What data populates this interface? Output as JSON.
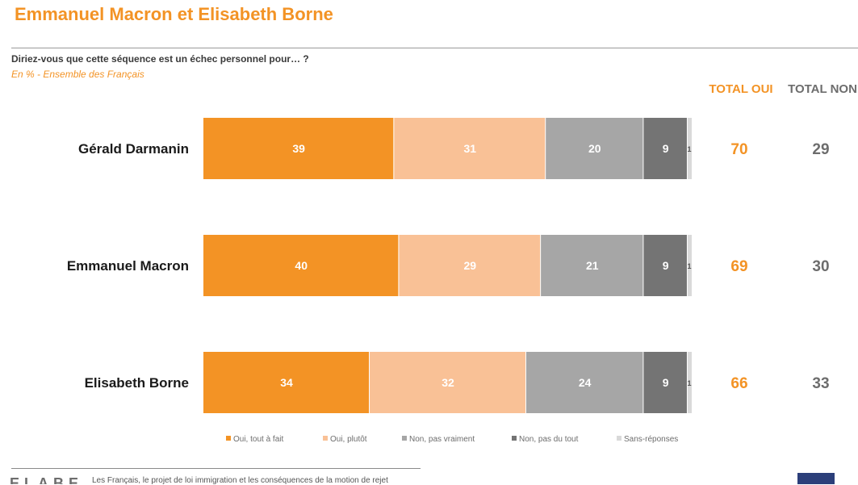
{
  "header": {
    "title": "Emmanuel Macron et Elisabeth Borne",
    "question": "Diriez-vous que cette séquence est un échec personnel pour… ?",
    "subtitle": "En % - Ensemble des Français"
  },
  "columns": {
    "total_oui": "TOTAL OUI",
    "total_non": "TOTAL NON"
  },
  "colors": {
    "accent": "#f39325",
    "oui_tout_a_fait": "#f39325",
    "oui_plutot": "#f9c196",
    "non_pas_vraiment": "#a6a6a6",
    "non_pas_du_tout": "#747474",
    "sans_reponses": "#d9d9d9",
    "total_non_text": "#6d6d6d"
  },
  "chart_data": {
    "type": "bar",
    "orientation": "horizontal",
    "stacked": true,
    "categories": [
      "Gérald Darmanin",
      "Emmanuel Macron",
      "Elisabeth Borne"
    ],
    "series": [
      {
        "name": "Oui, tout à fait",
        "values": [
          39,
          40,
          34
        ]
      },
      {
        "name": "Oui, plutôt",
        "values": [
          31,
          29,
          32
        ]
      },
      {
        "name": "Non, pas vraiment",
        "values": [
          20,
          21,
          24
        ]
      },
      {
        "name": "Non, pas du tout",
        "values": [
          9,
          9,
          9
        ]
      },
      {
        "name": "Sans-réponses",
        "values": [
          1,
          1,
          1
        ]
      }
    ],
    "total_oui": [
      70,
      69,
      66
    ],
    "total_non": [
      29,
      30,
      33
    ],
    "xlim": [
      0,
      100
    ],
    "legend": "bottom"
  },
  "footer": {
    "logo": "ELABE",
    "text": "Les Français, le projet de loi immigration et les conséquences de la motion de rejet"
  }
}
